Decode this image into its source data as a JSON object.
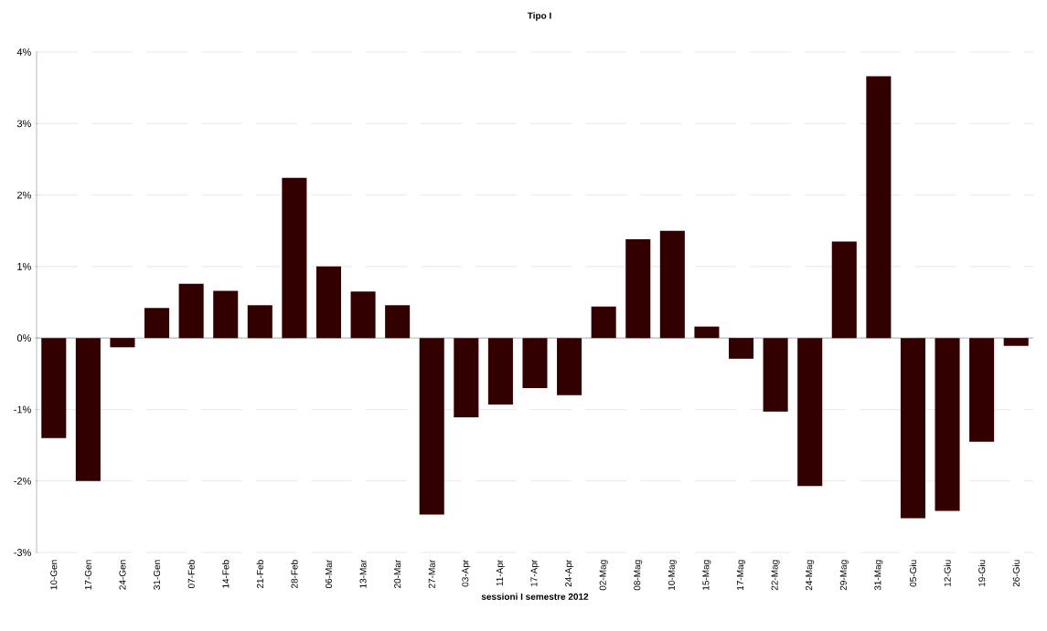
{
  "chart_data": {
    "type": "bar",
    "title": "Tipo I",
    "xlabel": "sessioni I semestre 2012",
    "categories": [
      "10-Gen",
      "17-Gen",
      "24-Gen",
      "31-Gen",
      "07-Feb",
      "14-Feb",
      "21-Feb",
      "28-Feb",
      "06-Mar",
      "13-Mar",
      "20-Mar",
      "27-Mar",
      "03-Apr",
      "11-Apr",
      "17-Apr",
      "24-Apr",
      "02-Mag",
      "08-Mag",
      "10-Mag",
      "15-Mag",
      "17-Mag",
      "22-Mag",
      "24-Mag",
      "29-Mag",
      "31-Mag",
      "05-Giu",
      "12-Giu",
      "19-Giu",
      "26-Giu"
    ],
    "values": [
      -1.4,
      -2.0,
      -0.13,
      0.42,
      0.76,
      0.66,
      0.46,
      2.24,
      1.0,
      0.65,
      0.46,
      -2.47,
      -1.11,
      -0.93,
      -0.7,
      -0.8,
      0.44,
      1.38,
      1.5,
      0.16,
      -0.29,
      -1.03,
      -2.07,
      1.35,
      3.66,
      -2.52,
      -2.42,
      -1.45,
      -0.11
    ],
    "color": "#330000",
    "ylim": [
      -3,
      4
    ],
    "yticks": [
      {
        "value": -3,
        "label": "-3%"
      },
      {
        "value": -2,
        "label": "-2%"
      },
      {
        "value": -1,
        "label": "-1%"
      },
      {
        "value": 0,
        "label": "0%"
      },
      {
        "value": 1,
        "label": "1%"
      },
      {
        "value": 2,
        "label": "2%"
      },
      {
        "value": 3,
        "label": "3%"
      },
      {
        "value": 4,
        "label": "4%"
      }
    ],
    "grid": "y"
  }
}
